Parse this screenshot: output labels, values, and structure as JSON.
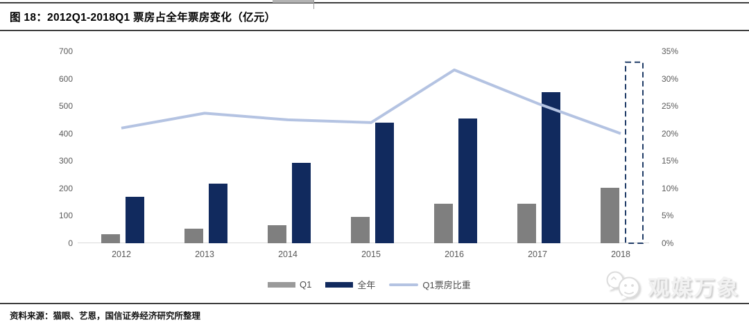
{
  "header": {
    "title": "图 18：2012Q1-2018Q1 票房占全年票房变化（亿元）"
  },
  "footer": {
    "source": "资料来源：猫眼、艺恩，国信证券经济研究所整理"
  },
  "watermark": {
    "text": "观媒万象",
    "icon": "chat-bubbles-icon"
  },
  "colors": {
    "q1_bar": "#7f7f7f",
    "year_bar": "#112a5e",
    "ratio_line": "#b4c3e2",
    "estimate_outline": "#1f3b66",
    "axis_text": "#595959",
    "rule": "#3d3d3d",
    "baseline": "#d9d9d9"
  },
  "legend": [
    {
      "label": "Q1",
      "type": "bar",
      "color": "#9a9a9a"
    },
    {
      "label": "全年",
      "type": "bar",
      "color": "#112a5e"
    },
    {
      "label": "Q1票房比重",
      "type": "line",
      "color": "#b4c3e2"
    }
  ],
  "chart_data": {
    "type": "combo-bar-line",
    "title": "图 18：2012Q1-2018Q1 票房占全年票房变化（亿元）",
    "categories": [
      "2012",
      "2013",
      "2014",
      "2015",
      "2016",
      "2017",
      "2018"
    ],
    "series": [
      {
        "name": "Q1",
        "type": "bar",
        "axis": "left",
        "color": "#7f7f7f",
        "values": [
          34,
          52,
          66,
          96,
          144,
          144,
          202
        ]
      },
      {
        "name": "全年",
        "type": "bar",
        "axis": "left",
        "color": "#112a5e",
        "values": [
          170,
          218,
          294,
          440,
          455,
          550,
          null
        ]
      },
      {
        "name": "Q1票房比重",
        "type": "line",
        "axis": "right",
        "color": "#b4c3e2",
        "values": [
          21,
          23.7,
          22.5,
          22,
          31.6,
          25.5,
          20
        ]
      }
    ],
    "estimate_2018": {
      "category": "2018",
      "value": 660,
      "style": "dashed-outline",
      "color": "#1f3b66"
    },
    "y_left": {
      "ticks": [
        0,
        100,
        200,
        300,
        400,
        500,
        600,
        700
      ],
      "range": [
        0,
        700
      ]
    },
    "y_right": {
      "ticks": [
        "0%",
        "5%",
        "10%",
        "15%",
        "20%",
        "25%",
        "30%",
        "35%"
      ],
      "range": [
        0,
        35
      ],
      "unit": "%"
    },
    "grid": false,
    "legend_position": "bottom"
  }
}
